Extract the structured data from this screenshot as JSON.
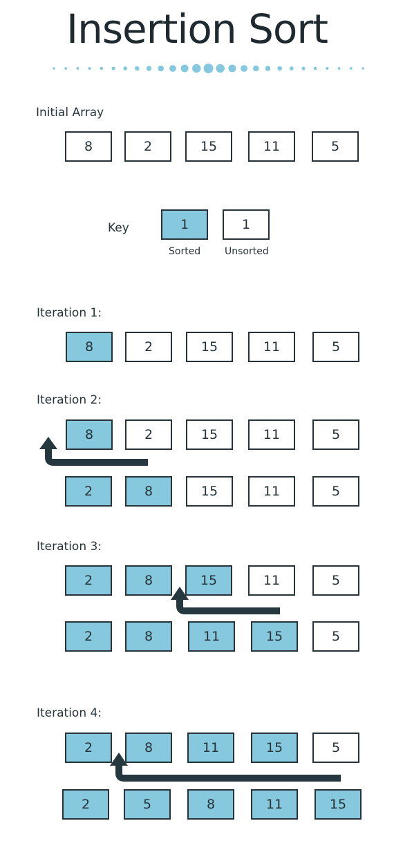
{
  "title": "Insertion Sort",
  "initial": {
    "label": "Initial Array",
    "values": [
      "8",
      "2",
      "15",
      "11",
      "5"
    ]
  },
  "key": {
    "label": "Key",
    "sorted_value": "1",
    "unsorted_value": "1",
    "sorted_caption": "Sorted",
    "unsorted_caption": "Unsorted"
  },
  "iterations": [
    {
      "label": "Iteration 1:",
      "rows": [
        {
          "values": [
            "8",
            "2",
            "15",
            "11",
            "5"
          ],
          "sorted": [
            true,
            false,
            false,
            false,
            false
          ]
        }
      ]
    },
    {
      "label": "Iteration 2:",
      "rows": [
        {
          "values": [
            "8",
            "2",
            "15",
            "11",
            "5"
          ],
          "sorted": [
            true,
            false,
            false,
            false,
            false
          ]
        },
        {
          "values": [
            "2",
            "8",
            "15",
            "11",
            "5"
          ],
          "sorted": [
            true,
            true,
            false,
            false,
            false
          ]
        }
      ]
    },
    {
      "label": "Iteration 3:",
      "rows": [
        {
          "values": [
            "2",
            "8",
            "15",
            "11",
            "5"
          ],
          "sorted": [
            true,
            true,
            true,
            false,
            false
          ]
        },
        {
          "values": [
            "2",
            "8",
            "11",
            "15",
            "5"
          ],
          "sorted": [
            true,
            true,
            true,
            true,
            false
          ]
        }
      ]
    },
    {
      "label": "Iteration 4:",
      "rows": [
        {
          "values": [
            "2",
            "8",
            "11",
            "15",
            "5"
          ],
          "sorted": [
            true,
            true,
            true,
            true,
            false
          ]
        },
        {
          "values": [
            "2",
            "5",
            "8",
            "11",
            "15"
          ],
          "sorted": [
            true,
            true,
            true,
            true,
            true
          ]
        }
      ]
    }
  ],
  "colors": {
    "sorted_fill": "#86c9de",
    "unsorted_fill": "#ffffff",
    "border": "#26343a",
    "arrow": "#253840",
    "dots": "#86c9de"
  }
}
